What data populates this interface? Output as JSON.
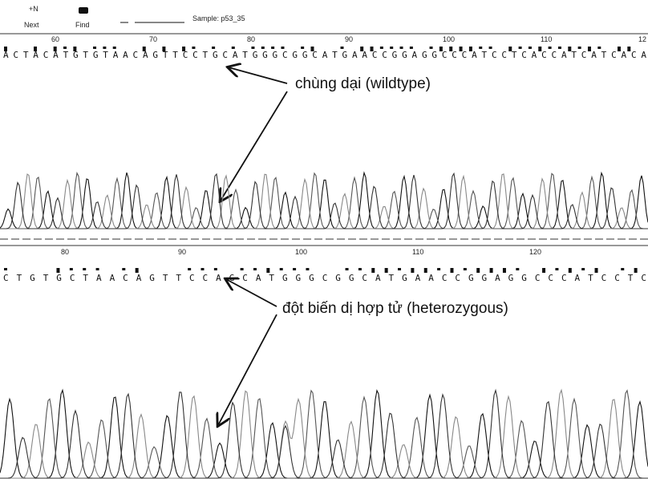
{
  "toolbar": {
    "buttons": [
      "Next",
      "Find"
    ],
    "sample": "Sample: p53_35"
  },
  "panels": [
    {
      "ruler": [
        "60",
        "70",
        "80",
        "90",
        "100",
        "110",
        "12"
      ],
      "sequence": "ACTACATGTGTAACAGTTCCTGCATGGGCGGCATGAACCGGAGGCCCATCCTCACCATCATCACA",
      "annotation": "chùng dại (wildtype)"
    },
    {
      "ruler": [
        "80",
        "90",
        "100",
        "110",
        "120"
      ],
      "sequence": "CTGTGCTAACAGTTCCAGCATGGGCGGCATGAACCGGAGGCCCATCCTC",
      "annotation": "đột biến dị hợp tử (heterozygous)"
    }
  ]
}
